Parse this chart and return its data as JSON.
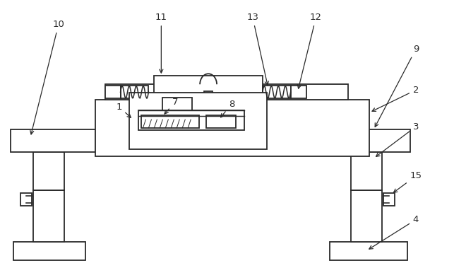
{
  "bg_color": "#ffffff",
  "lc": "#2a2a2a",
  "lw": 1.3,
  "fig_w": 6.43,
  "fig_h": 3.79
}
